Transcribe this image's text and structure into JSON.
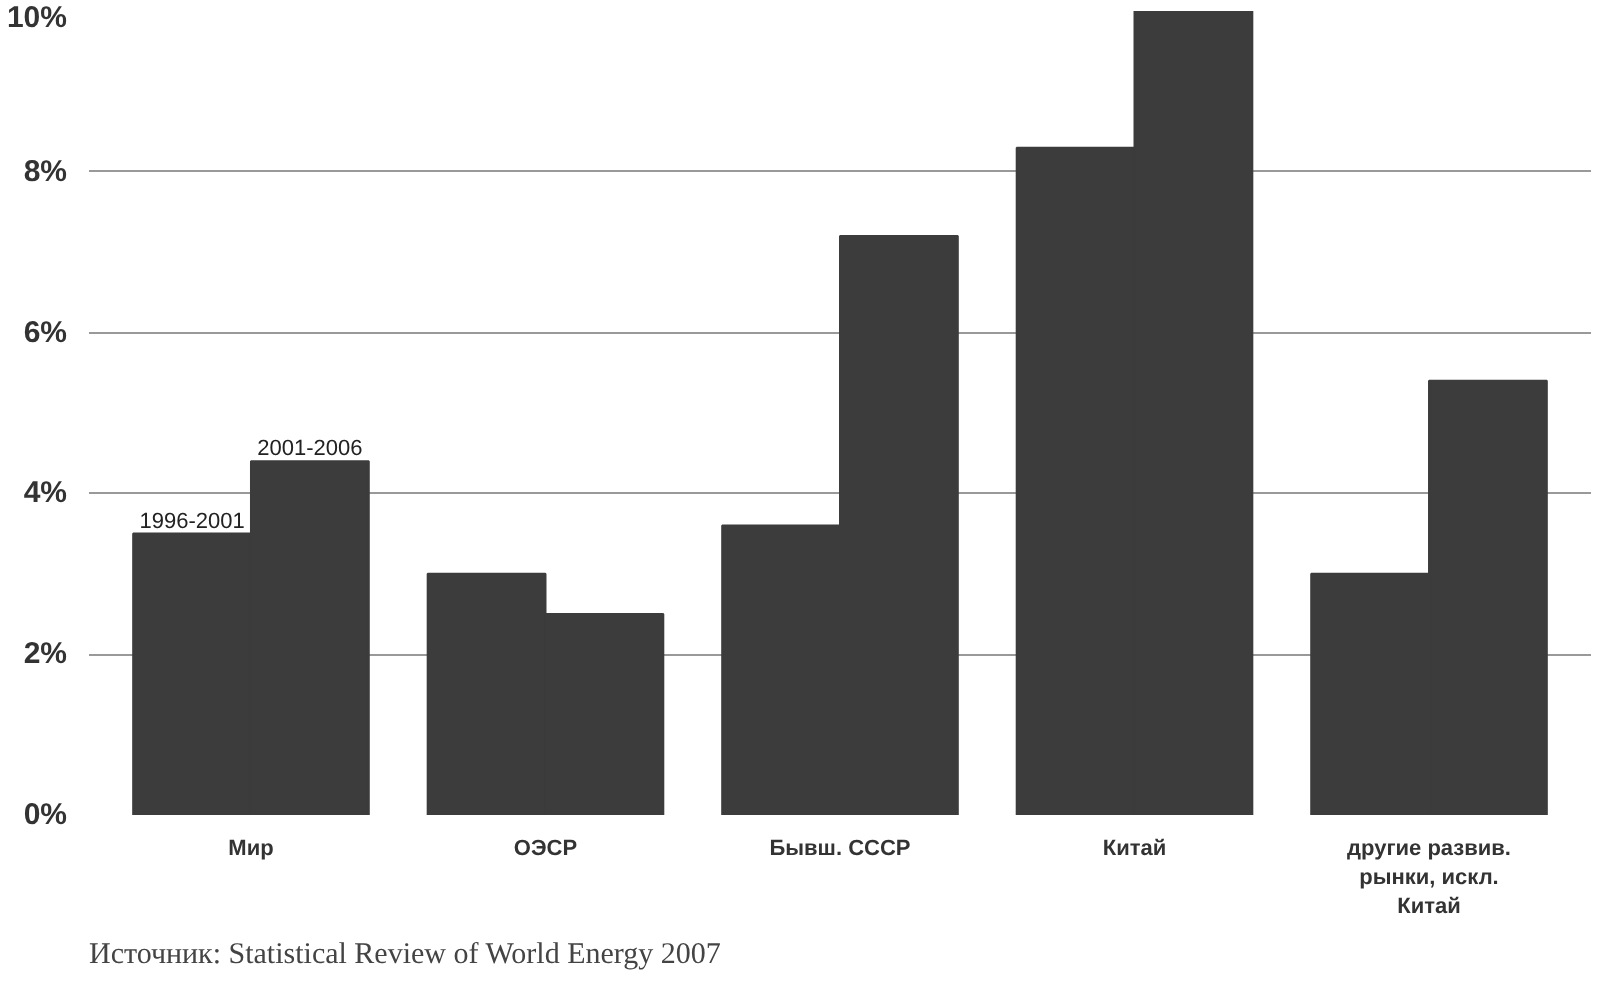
{
  "chart_data": {
    "type": "bar",
    "categories": [
      "Мир",
      "ОЭСР",
      "Бывш. СССР",
      "Китай",
      "другие развив.\nрынки, искл.\nКитай"
    ],
    "series": [
      {
        "name": "1996-2001",
        "color": "#3c3c3c",
        "values": [
          3.5,
          3.0,
          3.6,
          8.3,
          3.0
        ]
      },
      {
        "name": "2001-2006",
        "color": "#3c3c3c",
        "values": [
          4.4,
          2.5,
          7.2,
          10.0,
          5.4
        ]
      }
    ],
    "ylim": [
      0,
      10
    ],
    "yticks": [
      {
        "value": 0,
        "label": "0%"
      },
      {
        "value": 2,
        "label": "2%"
      },
      {
        "value": 4,
        "label": "4%"
      },
      {
        "value": 6,
        "label": "6%"
      },
      {
        "value": 8,
        "label": "8%"
      },
      {
        "value": 10,
        "label": "10%"
      }
    ],
    "grid": "y",
    "annotations": [
      "Источник: Statistical Review of World Energy 2007"
    ]
  }
}
